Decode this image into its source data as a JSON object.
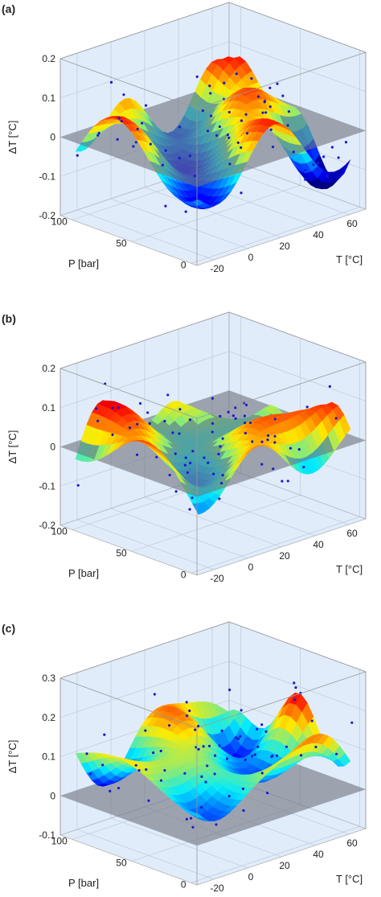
{
  "chart_data": [
    {
      "type": "surface3d",
      "label": "(a)",
      "xlabel": "T [°C]",
      "ylabel": "P [bar]",
      "zlabel": "ΔT [°C]",
      "xlim": [
        -30,
        70
      ],
      "xticks": [
        -20,
        0,
        20,
        40,
        60
      ],
      "ylim": [
        -5,
        110
      ],
      "yticks": [
        0,
        50,
        100
      ],
      "zlim": [
        -0.2,
        0.2
      ],
      "zticks": [
        -0.2,
        -0.1,
        0,
        0.1,
        0.2
      ]
    },
    {
      "type": "surface3d",
      "label": "(b)",
      "xlabel": "T [°C]",
      "ylabel": "P [bar]",
      "zlabel": "ΔT [°C]",
      "xlim": [
        -30,
        70
      ],
      "xticks": [
        -20,
        0,
        20,
        40,
        60
      ],
      "ylim": [
        -5,
        110
      ],
      "yticks": [
        0,
        50,
        100
      ],
      "zlim": [
        -0.2,
        0.2
      ],
      "zticks": [
        -0.2,
        -0.1,
        0,
        0.1,
        0.2
      ]
    },
    {
      "type": "surface3d",
      "label": "(c)",
      "xlabel": "T [°C]",
      "ylabel": "P [bar]",
      "zlabel": "ΔT [°C]",
      "xlim": [
        -30,
        70
      ],
      "xticks": [
        -20,
        0,
        20,
        40,
        60
      ],
      "ylim": [
        -5,
        110
      ],
      "yticks": [
        0,
        50,
        100
      ],
      "zlim": [
        -0.1,
        0.3
      ],
      "zticks": [
        -0.1,
        0,
        0.1,
        0.2,
        0.3
      ]
    }
  ]
}
